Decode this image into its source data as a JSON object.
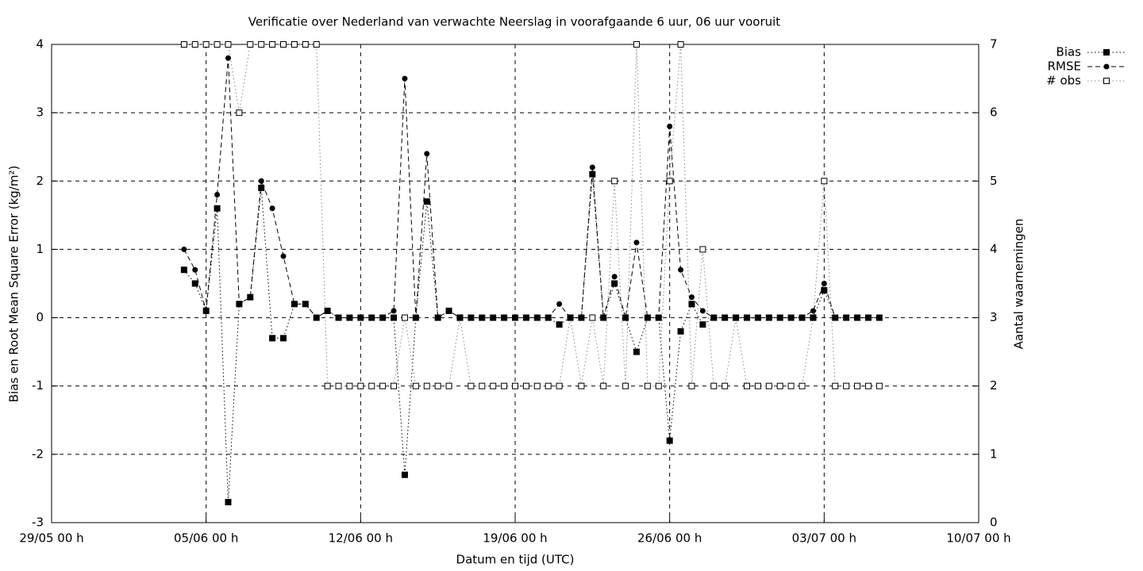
{
  "chart_data": {
    "type": "line",
    "title": "Verificatie over Nederland van verwachte Neerslag in voorafgaande 6 uur, 06 uur vooruit",
    "x_label": "Datum en tijd (UTC)",
    "y_label": "Bias en Root Mean Square Error (kg/m²)",
    "y2_label": "Aantal waarnemingen",
    "x": [
      6,
      6.5,
      7,
      7.5,
      8,
      8.5,
      9,
      9.5,
      10,
      10.5,
      11,
      11.5,
      12,
      12.5,
      13,
      13.5,
      14,
      14.5,
      15,
      15.5,
      16,
      16.5,
      17,
      17.5,
      18,
      18.5,
      19,
      19.5,
      20,
      20.5,
      21,
      21.5,
      22,
      22.5,
      23,
      23.5,
      24,
      24.5,
      25,
      25.5,
      26,
      26.5,
      27,
      27.5,
      28,
      28.5,
      29,
      29.5,
      30,
      30.5,
      31,
      31.5,
      32,
      32.5,
      33,
      33.5,
      34,
      34.5,
      35,
      35.5,
      36,
      36.5,
      37,
      37.5
    ],
    "series": [
      {
        "name": "Bias",
        "color": "#000000",
        "marker": "filled-square",
        "values": [
          0.7,
          0.5,
          0.1,
          1.6,
          -2.7,
          0.2,
          0.3,
          1.9,
          -0.3,
          -0.3,
          0.2,
          0.2,
          0,
          0.1,
          0,
          0,
          0,
          0,
          0,
          0,
          -2.3,
          0,
          1.7,
          0,
          0.1,
          0,
          0,
          0,
          0,
          0,
          0,
          0,
          0,
          0,
          -0.1,
          0,
          0,
          2.1,
          0,
          0.5,
          0,
          -0.5,
          0,
          0,
          -1.8,
          -0.2,
          0.2,
          -0.1,
          0,
          0,
          0,
          0,
          0,
          0,
          0,
          0,
          0,
          0,
          0.4,
          0,
          0,
          0,
          0,
          0
        ]
      },
      {
        "name": "RMSE",
        "color": "#000000",
        "marker": "circle",
        "values": [
          1.0,
          0.7,
          0.1,
          1.8,
          3.8,
          0.2,
          0.3,
          2.0,
          1.6,
          0.9,
          0.2,
          0.2,
          0,
          0.1,
          0,
          0,
          0,
          0,
          0,
          0.1,
          3.5,
          0,
          2.4,
          0,
          0.1,
          0,
          0,
          0,
          0,
          0,
          0,
          0,
          0,
          0,
          0.2,
          0,
          0,
          2.2,
          0,
          0.6,
          0,
          1.1,
          0,
          0,
          2.8,
          0.7,
          0.3,
          0.1,
          0,
          0,
          0,
          0,
          0,
          0,
          0,
          0,
          0,
          0.1,
          0.5,
          0,
          0,
          0,
          0,
          0
        ]
      },
      {
        "name": "# obs",
        "color": "#000000",
        "marker": "open-square",
        "axis": "y2",
        "values": [
          7,
          7,
          7,
          7,
          7,
          6,
          7,
          7,
          7,
          7,
          7,
          7,
          7,
          2,
          2,
          2,
          2,
          2,
          2,
          2,
          3,
          2,
          2,
          2,
          2,
          3,
          2,
          2,
          2,
          2,
          2,
          2,
          2,
          2,
          2,
          3,
          2,
          3,
          2,
          5,
          2,
          7,
          2,
          2,
          5,
          7,
          2,
          4,
          2,
          2,
          3,
          2,
          2,
          2,
          2,
          2,
          2,
          3,
          5,
          2,
          2,
          2,
          2,
          2
        ]
      }
    ],
    "xlim": [
      0,
      42
    ],
    "xticks": [
      {
        "value": 0,
        "label": "29/05 00 h"
      },
      {
        "value": 7,
        "label": "05/06 00 h"
      },
      {
        "value": 14,
        "label": "12/06 00 h"
      },
      {
        "value": 21,
        "label": "19/06 00 h"
      },
      {
        "value": 28,
        "label": "26/06 00 h"
      },
      {
        "value": 35,
        "label": "03/07 00 h"
      },
      {
        "value": 42,
        "label": "10/07 00 h"
      }
    ],
    "ylim": [
      -3,
      4
    ],
    "yticks": [
      -3,
      -2,
      -1,
      0,
      1,
      2,
      3,
      4
    ],
    "y2lim": [
      0,
      7
    ],
    "y2ticks": [
      0,
      1,
      2,
      3,
      4,
      5,
      6,
      7
    ],
    "grid": true,
    "legend": "top-right"
  }
}
